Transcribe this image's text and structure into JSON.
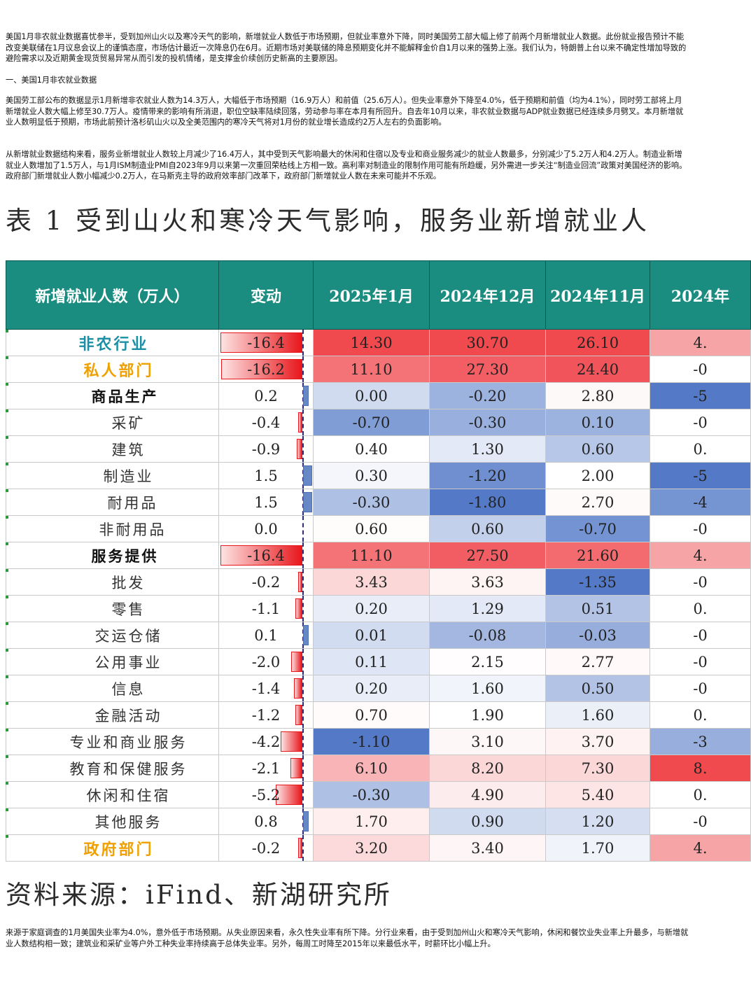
{
  "paragraphs": [
    "美国1月非农就业数据喜忧参半，受到加州山火以及寒冷天气的影响，新增就业人数低于市场预期，但就业率意外下降，同时美国劳工部大幅上修了前两个月新增就业人数据。此份就业报告预计不能改变美联储在1月议息会议上的谨慎态度，市场估计最近一次降息仍在6月。近期市场对美联储的降息预期变化并不能解释金价自1月以来的强势上涨。我们认为，特朗普上台以来不确定性增加导致的避险需求以及近期黄金现货贸易异常从而引发的投机情绪，是支撑金价续创历史新高的主要原因。",
    "一、美国1月非农就业数据",
    "美国劳工部公布的数据显示1月新增非农就业人数为14.3万人，大幅低于市场预期（16.9万人）和前值（25.6万人）。但失业率意外下降至4.0%，低于预期和前值（均为4.1%），同时劳工部将上月新增就业人数大幅上修至30.7万人。疫情带来的影响有所消退，职位空缺率陆续回落，劳动参与率在本月有所回升。自去年10月以来，非农就业数据与ADP就业数据已经连续多月劈叉。本月新增就业人数明显低于预期，市场此前预计洛杉矶山火以及全美范围内的寒冷天气将对1月份的就业增长造成约2万人左右的负面影响。",
    "从新增就业数据结构来看，服务业新增就业人数较上月减少了16.4万人，其中受到天气影响最大的休闲和住宿以及专业和商业服务减少的就业人数最多，分别减少了5.2万人和4.2万人。制造业新增就业人数增加了1.5万人，与1月ISM制造业PMI自2023年9月以来第一次重回荣枯线上方相一致。高利率对制造业的限制作用可能有所趋缓，另外需进一步关注“制造业回流”政策对美国经济的影响。政府部门新增就业人数小幅减少0.2万人，在马斯克主导的政府效率部门改革下，政府部门新增就业人数在未来可能并不乐观。",
    "来源于家庭调查的1月美国失业率为4.0%，意外低于市场预期。从失业原因来看，永久性失业率有所下降。分行业来看，由于受到加州山火和寒冷天气影响，休闲和餐饮业失业率上升最多，与新增就业人数结构相一致；建筑业和采矿业等户外工种失业率持续高于总体失业率。另外，每周工时降至2015年以来最低水平，时薪环比小幅上升。"
  ],
  "table_title": "表 1 受到山火和寒冷天气影响，服务业新增就业人",
  "source": "资料来源：iFind、新湖研究所",
  "table": {
    "headers": [
      "新增就业人数（万人）",
      "变动",
      "2025年1月",
      "2024年12月",
      "2024年11月",
      "2024年"
    ],
    "rows": [
      {
        "name": "非农行业",
        "level": 0,
        "change": "-16.4",
        "jan25": "14.30",
        "dec24": "30.70",
        "nov24": "26.10",
        "oct24": "4."
      },
      {
        "name": "私人部门",
        "level": 1,
        "change": "-16.2",
        "jan25": "11.10",
        "dec24": "27.30",
        "nov24": "24.40",
        "oct24": "-0"
      },
      {
        "name": "商品生产",
        "level": 2,
        "change": "0.2",
        "jan25": "0.00",
        "dec24": "-0.20",
        "nov24": "2.80",
        "oct24": "-5"
      },
      {
        "name": "采矿",
        "level": 3,
        "change": "-0.4",
        "jan25": "-0.70",
        "dec24": "-0.30",
        "nov24": "0.10",
        "oct24": "-0"
      },
      {
        "name": "建筑",
        "level": 3,
        "change": "-0.9",
        "jan25": "0.40",
        "dec24": "1.30",
        "nov24": "0.60",
        "oct24": "0."
      },
      {
        "name": "制造业",
        "level": 3,
        "change": "1.5",
        "jan25": "0.30",
        "dec24": "-1.20",
        "nov24": "2.00",
        "oct24": "-5"
      },
      {
        "name": "耐用品",
        "level": 4,
        "change": "1.5",
        "jan25": "-0.30",
        "dec24": "-1.80",
        "nov24": "2.70",
        "oct24": "-4"
      },
      {
        "name": "非耐用品",
        "level": 4,
        "change": "0.0",
        "jan25": "0.60",
        "dec24": "0.60",
        "nov24": "-0.70",
        "oct24": "-0"
      },
      {
        "name": "服务提供",
        "level": 2,
        "change": "-16.4",
        "jan25": "11.10",
        "dec24": "27.50",
        "nov24": "21.60",
        "oct24": "4."
      },
      {
        "name": "批发",
        "level": 3,
        "change": "-0.2",
        "jan25": "3.43",
        "dec24": "3.63",
        "nov24": "-1.35",
        "oct24": "-0"
      },
      {
        "name": "零售",
        "level": 3,
        "change": "-1.1",
        "jan25": "0.20",
        "dec24": "1.29",
        "nov24": "0.51",
        "oct24": "0."
      },
      {
        "name": "交运仓储",
        "level": 3,
        "change": "0.1",
        "jan25": "0.01",
        "dec24": "-0.08",
        "nov24": "-0.03",
        "oct24": "-0"
      },
      {
        "name": "公用事业",
        "level": 3,
        "change": "-2.0",
        "jan25": "0.11",
        "dec24": "2.15",
        "nov24": "2.77",
        "oct24": "-0"
      },
      {
        "name": "信息",
        "level": 3,
        "change": "-1.4",
        "jan25": "0.20",
        "dec24": "1.60",
        "nov24": "0.50",
        "oct24": "-0"
      },
      {
        "name": "金融活动",
        "level": 3,
        "change": "-1.2",
        "jan25": "0.70",
        "dec24": "1.90",
        "nov24": "1.60",
        "oct24": "0."
      },
      {
        "name": "专业和商业服务",
        "level": 3,
        "change": "-4.2",
        "jan25": "-1.10",
        "dec24": "3.10",
        "nov24": "3.70",
        "oct24": "-3"
      },
      {
        "name": "教育和保健服务",
        "level": 3,
        "change": "-2.1",
        "jan25": "6.10",
        "dec24": "8.20",
        "nov24": "7.30",
        "oct24": "8."
      },
      {
        "name": "休闲和住宿",
        "level": 3,
        "change": "-5.2",
        "jan25": "-0.30",
        "dec24": "4.90",
        "nov24": "5.40",
        "oct24": "0."
      },
      {
        "name": "其他服务",
        "level": 3,
        "change": "0.8",
        "jan25": "1.70",
        "dec24": "0.90",
        "nov24": "1.20",
        "oct24": "-0"
      },
      {
        "name": "政府部门",
        "level": 1,
        "change": "-0.2",
        "jan25": "3.20",
        "dec24": "3.40",
        "nov24": "1.70",
        "oct24": "4."
      }
    ],
    "colors": {
      "header_bg": "#1b8c80",
      "positive_strong": "#ef3f45",
      "negative_strong": "#4a72c4",
      "neutral": "#ffffff",
      "level0_text": "#1b8fa6",
      "level1_text": "#f0a000"
    }
  }
}
